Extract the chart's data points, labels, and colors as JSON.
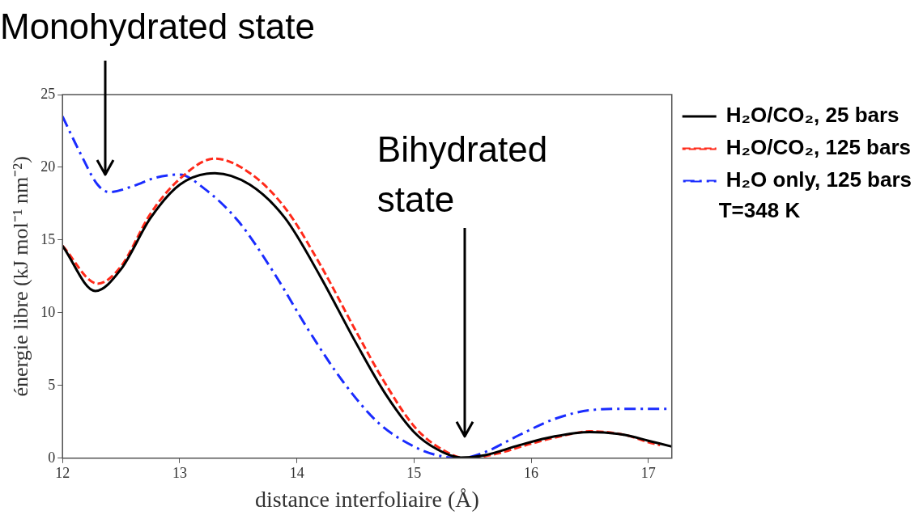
{
  "chart_data": {
    "type": "line",
    "xlabel": "distance interfoliaire (Å)",
    "ylabel": "énergie libre (kJ mol⁻¹ nm⁻²)",
    "xlim": [
      12,
      17.2
    ],
    "xticks": [
      12,
      13,
      14,
      15,
      16,
      17
    ],
    "ylim": [
      0,
      25
    ],
    "yticks": [
      0,
      5,
      10,
      15,
      20,
      25
    ],
    "grid": false,
    "legend": "right",
    "marker": "none",
    "series": [
      {
        "name": "H₂O/CO₂, 25 bars",
        "color": "#000000",
        "line_style": "solid",
        "x": [
          12,
          12.28,
          12.5,
          12.75,
          13.0,
          13.3,
          13.6,
          13.9,
          14.2,
          14.5,
          14.75,
          15.0,
          15.2,
          15.4,
          15.6,
          15.9,
          16.2,
          16.5,
          16.8,
          17.0,
          17.2
        ],
        "values": [
          14.6,
          11.5,
          13.0,
          16.5,
          18.8,
          19.6,
          18.8,
          16.5,
          12.5,
          8.0,
          4.5,
          1.8,
          0.6,
          0.05,
          0.2,
          0.9,
          1.5,
          1.8,
          1.6,
          1.2,
          0.8
        ]
      },
      {
        "name": "H₂O/CO₂, 125 bars",
        "color": "#ff2a1a",
        "line_style": "dashed",
        "x": [
          12,
          12.3,
          12.5,
          12.75,
          13.0,
          13.3,
          13.6,
          13.9,
          14.2,
          14.5,
          14.75,
          15.0,
          15.2,
          15.45,
          15.7,
          16.0,
          16.3,
          16.5,
          16.8,
          17.0,
          17.1
        ],
        "values": [
          14.6,
          12.0,
          13.2,
          16.8,
          19.2,
          20.6,
          19.6,
          17.2,
          13.3,
          8.8,
          5.2,
          2.2,
          0.8,
          0.0,
          0.3,
          1.0,
          1.6,
          1.85,
          1.6,
          1.1,
          0.9
        ]
      },
      {
        "name": "H₂O only, 125 bars",
        "color": "#1a2cff",
        "line_style": "dashdot",
        "x": [
          12,
          12.15,
          12.3,
          12.4,
          12.6,
          12.8,
          13.0,
          13.2,
          13.5,
          13.8,
          14.1,
          14.4,
          14.7,
          15.0,
          15.2,
          15.4,
          15.6,
          15.9,
          16.2,
          16.5,
          16.8,
          17.2
        ],
        "values": [
          23.5,
          21.0,
          18.8,
          18.3,
          18.7,
          19.3,
          19.5,
          18.6,
          16.3,
          12.8,
          8.8,
          5.2,
          2.4,
          0.8,
          0.2,
          0.0,
          0.4,
          1.6,
          2.7,
          3.3,
          3.4,
          3.4
        ]
      }
    ],
    "annotations": [
      "Monohydrated state",
      "Bihydrated state",
      "T=348 K"
    ]
  }
}
